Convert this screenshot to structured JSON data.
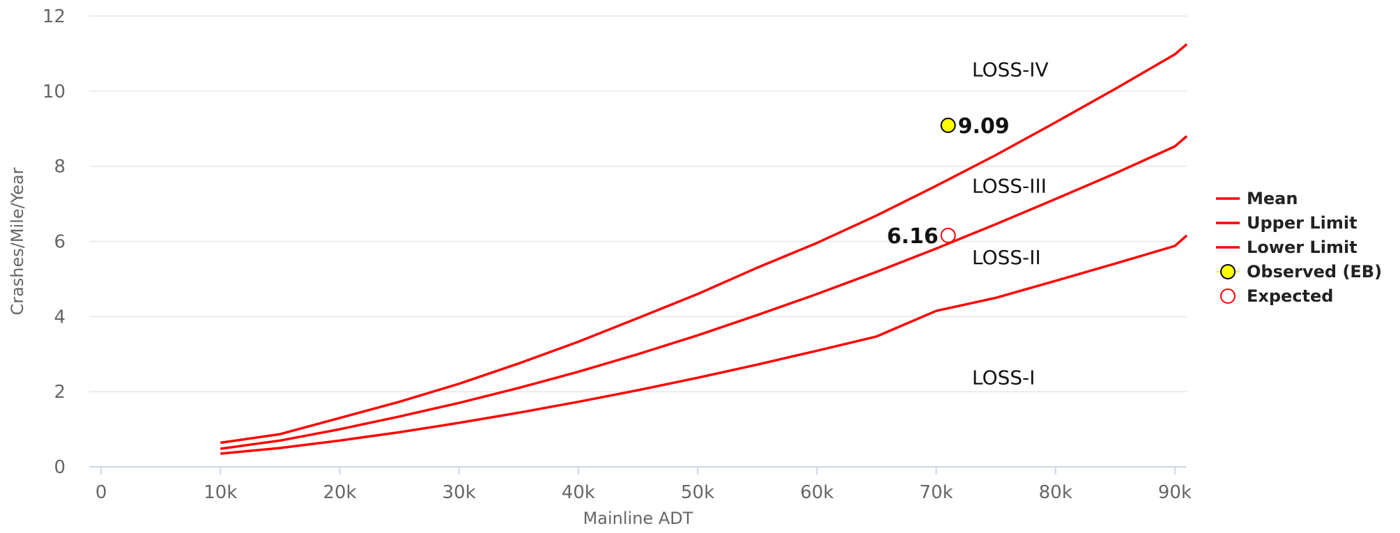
{
  "chart_data": {
    "type": "line",
    "title": "",
    "xlabel": "Mainline ADT",
    "ylabel": "Crashes/Mile/Year",
    "xlim": [
      -1000,
      91000
    ],
    "ylim": [
      0,
      12
    ],
    "x_ticks": [
      {
        "value": 0,
        "label": "0"
      },
      {
        "value": 10000,
        "label": "10k"
      },
      {
        "value": 20000,
        "label": "20k"
      },
      {
        "value": 30000,
        "label": "30k"
      },
      {
        "value": 40000,
        "label": "40k"
      },
      {
        "value": 50000,
        "label": "50k"
      },
      {
        "value": 60000,
        "label": "60k"
      },
      {
        "value": 70000,
        "label": "70k"
      },
      {
        "value": 80000,
        "label": "80k"
      },
      {
        "value": 90000,
        "label": "90k"
      }
    ],
    "y_ticks": [
      {
        "value": 0,
        "label": "0"
      },
      {
        "value": 2,
        "label": "2"
      },
      {
        "value": 4,
        "label": "4"
      },
      {
        "value": 6,
        "label": "6"
      },
      {
        "value": 8,
        "label": "8"
      },
      {
        "value": 10,
        "label": "10"
      },
      {
        "value": 12,
        "label": "12"
      }
    ],
    "grid": true,
    "x": [
      10000,
      15000,
      20000,
      25000,
      30000,
      35000,
      40000,
      45000,
      50000,
      55000,
      60000,
      65000,
      70000,
      75000,
      80000,
      85000,
      90000,
      91000
    ],
    "series": [
      {
        "name": "Mean",
        "color": "#ff0000",
        "values": [
          0.48,
          0.7,
          1.0,
          1.34,
          1.7,
          2.1,
          2.53,
          3.0,
          3.5,
          4.04,
          4.6,
          5.19,
          5.81,
          6.46,
          7.13,
          7.81,
          8.53,
          8.8
        ]
      },
      {
        "name": "Upper Limit",
        "color": "#ff0000",
        "values": [
          0.64,
          0.87,
          1.3,
          1.73,
          2.21,
          2.75,
          3.33,
          3.96,
          4.6,
          5.3,
          5.96,
          6.69,
          7.48,
          8.3,
          9.17,
          10.06,
          10.98,
          11.25
        ]
      },
      {
        "name": "Lower Limit",
        "color": "#ff0000",
        "values": [
          0.35,
          0.5,
          0.7,
          0.92,
          1.17,
          1.44,
          1.73,
          2.04,
          2.37,
          2.72,
          3.09,
          3.47,
          4.15,
          4.5,
          4.95,
          5.41,
          5.88,
          6.16
        ]
      }
    ],
    "points": [
      {
        "name": "Observed (EB)",
        "x": 71000,
        "y": 9.09,
        "label": "9.09",
        "fill": "#ffff00",
        "stroke": "#000000"
      },
      {
        "name": "Expected",
        "x": 71000,
        "y": 6.16,
        "label": "6.16",
        "fill": "#ffffff",
        "stroke": "#ff0000"
      }
    ],
    "zone_labels": [
      {
        "text": "LOSS-IV",
        "x": 73000,
        "y": 10.4
      },
      {
        "text": "LOSS-III",
        "x": 73000,
        "y": 7.3
      },
      {
        "text": "LOSS-II",
        "x": 73000,
        "y": 5.4
      },
      {
        "text": "LOSS-I",
        "x": 73000,
        "y": 2.2
      }
    ],
    "legend": {
      "position": "right",
      "items": [
        {
          "name": "Mean",
          "symbol": "line",
          "color": "#ff0000"
        },
        {
          "name": "Upper Limit",
          "symbol": "line",
          "color": "#ff0000"
        },
        {
          "name": "Lower Limit",
          "symbol": "line",
          "color": "#ff0000"
        },
        {
          "name": "Observed (EB)",
          "symbol": "filled-circle",
          "color": "#ffff00"
        },
        {
          "name": "Expected",
          "symbol": "hollow-circle",
          "color": "#ff0000"
        }
      ]
    }
  }
}
